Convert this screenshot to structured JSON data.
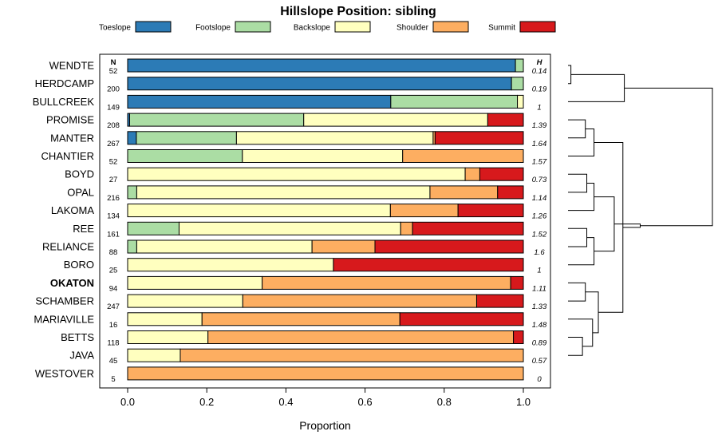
{
  "chart_data": {
    "type": "bar",
    "orientation": "horizontal",
    "stacked": true,
    "title": "Hillslope Position: sibling",
    "xlabel": "Proportion",
    "ylabel": "",
    "xlim": [
      0,
      1
    ],
    "x_ticks": [
      "0.0",
      "0.2",
      "0.4",
      "0.6",
      "0.8",
      "1.0"
    ],
    "x_tick_values": [
      0,
      0.2,
      0.4,
      0.6,
      0.8,
      1.0
    ],
    "legend_position": "top",
    "n_header": "N",
    "h_header": "H",
    "series": [
      {
        "name": "Toeslope",
        "color": "#2c7bb6"
      },
      {
        "name": "Footslope",
        "color": "#abdda4"
      },
      {
        "name": "Backslope",
        "color": "#ffffbf"
      },
      {
        "name": "Shoulder",
        "color": "#fdae61"
      },
      {
        "name": "Summit",
        "color": "#d7191c"
      }
    ],
    "rows": [
      {
        "label": "WENDTE",
        "bold": false,
        "n": "52",
        "h": "0.14",
        "values": [
          0.98,
          0.02,
          0,
          0,
          0
        ]
      },
      {
        "label": "HERDCAMP",
        "bold": false,
        "n": "200",
        "h": "0.19",
        "values": [
          0.97,
          0.03,
          0,
          0,
          0
        ]
      },
      {
        "label": "BULLCREEK",
        "bold": false,
        "n": "149",
        "h": "1",
        "values": [
          0.665,
          0.32,
          0.015,
          0,
          0
        ]
      },
      {
        "label": "PROMISE",
        "bold": false,
        "n": "208",
        "h": "1.39",
        "values": [
          0.005,
          0.44,
          0.465,
          0,
          0.09
        ]
      },
      {
        "label": "MANTER",
        "bold": false,
        "n": "267",
        "h": "1.64",
        "values": [
          0.022,
          0.253,
          0.497,
          0.005,
          0.223
        ]
      },
      {
        "label": "CHANTIER",
        "bold": false,
        "n": "52",
        "h": "1.57",
        "values": [
          0,
          0.29,
          0.405,
          0.305,
          0
        ]
      },
      {
        "label": "BOYD",
        "bold": false,
        "n": "27",
        "h": "0.73",
        "values": [
          0,
          0,
          0.853,
          0.037,
          0.11
        ]
      },
      {
        "label": "OPAL",
        "bold": false,
        "n": "216",
        "h": "1.14",
        "values": [
          0,
          0.023,
          0.741,
          0.171,
          0.065
        ]
      },
      {
        "label": "LAKOMA",
        "bold": false,
        "n": "134",
        "h": "1.26",
        "values": [
          0,
          0,
          0.664,
          0.171,
          0.165
        ]
      },
      {
        "label": "REE",
        "bold": false,
        "n": "161",
        "h": "1.52",
        "values": [
          0,
          0.13,
          0.56,
          0.03,
          0.28
        ]
      },
      {
        "label": "RELIANCE",
        "bold": false,
        "n": "88",
        "h": "1.6",
        "values": [
          0,
          0.023,
          0.443,
          0.159,
          0.375
        ]
      },
      {
        "label": "BORO",
        "bold": false,
        "n": "25",
        "h": "1",
        "values": [
          0,
          0,
          0.52,
          0,
          0.48
        ]
      },
      {
        "label": "OKATON",
        "bold": true,
        "n": "94",
        "h": "1.11",
        "values": [
          0,
          0,
          0.34,
          0.628,
          0.032
        ]
      },
      {
        "label": "SCHAMBER",
        "bold": false,
        "n": "247",
        "h": "1.33",
        "values": [
          0,
          0,
          0.291,
          0.591,
          0.118
        ]
      },
      {
        "label": "MARIAVILLE",
        "bold": false,
        "n": "16",
        "h": "1.48",
        "values": [
          0,
          0,
          0.188,
          0.5,
          0.312
        ]
      },
      {
        "label": "BETTS",
        "bold": false,
        "n": "118",
        "h": "0.89",
        "values": [
          0,
          0,
          0.203,
          0.772,
          0.025
        ]
      },
      {
        "label": "JAVA",
        "bold": false,
        "n": "45",
        "h": "0.57",
        "values": [
          0,
          0,
          0.133,
          0.867,
          0
        ]
      },
      {
        "label": "WESTOVER",
        "bold": false,
        "n": "5",
        "h": "0",
        "values": [
          0,
          0,
          0,
          1.0,
          0
        ]
      }
    ],
    "dendrogram": {
      "merges": [
        [
          0,
          1,
          0.02
        ],
        [
          15,
          16,
          0.1
        ],
        [
          3,
          4,
          0.12
        ],
        [
          12,
          13,
          0.12
        ],
        [
          6,
          7,
          0.13
        ],
        [
          9,
          10,
          0.13
        ],
        [
          14,
          "n1",
          0.17
        ],
        [
          5,
          "n2",
          0.18
        ],
        [
          11,
          "n5",
          0.18
        ],
        [
          8,
          "n4",
          0.18
        ],
        [
          "n3",
          "n6",
          0.21
        ],
        [
          "n9",
          "n8",
          0.32
        ],
        [
          "n7",
          "n10",
          0.38
        ],
        [
          2,
          "n0",
          0.39
        ],
        [
          "n11",
          "n12",
          0.5
        ],
        [
          "n13",
          "n14",
          1.0
        ]
      ]
    }
  }
}
